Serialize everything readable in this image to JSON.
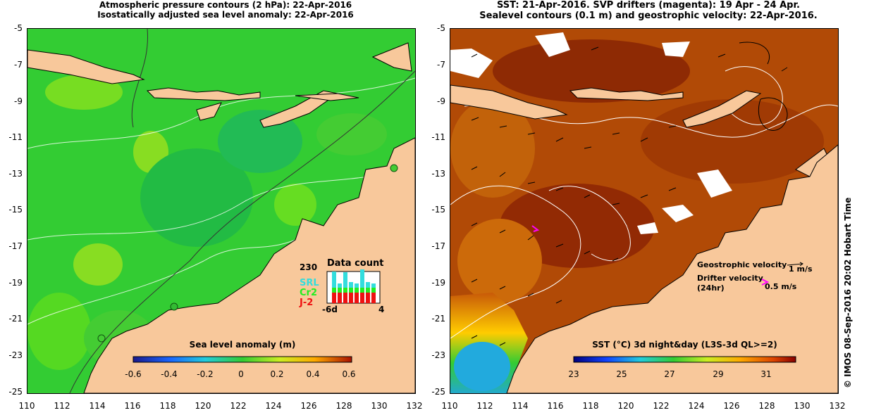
{
  "left_panel": {
    "title_line1": "Atmospheric pressure contours (2 hPa): 22-Apr-2016",
    "title_line2": "Isostatically adjusted sea level anomaly: 22-Apr-2016",
    "colorbar": {
      "title": "Sea level anomaly (m)",
      "labels": [
        "-0.6",
        "-0.4",
        "-0.2",
        "0",
        "0.2",
        "0.4",
        "0.6"
      ]
    },
    "data_count": {
      "title": "Data count",
      "max": "230",
      "x_start": "-6d",
      "x_end": "4",
      "legend": [
        "SRL",
        "Cr2",
        "J-2"
      ],
      "legend_colors": [
        "#33dddd",
        "#22ee22",
        "#ee1111"
      ]
    }
  },
  "right_panel": {
    "title_line1": "SST: 21-Apr-2016. SVP drifters (magenta): 19 Apr - 24 Apr.",
    "title_line2": "Sealevel contours (0.1 m) and geostrophic velocity: 22-Apr-2016.",
    "colorbar": {
      "title": "SST (°C) 3d night&day (L3S-3d QL>=2)",
      "labels": [
        "23",
        "25",
        "27",
        "29",
        "31"
      ]
    },
    "legend": {
      "geo_label": "Geostrophic velocity",
      "geo_value": "1 m/s",
      "drifter_label": "Drifter velocity",
      "drifter_sub": "(24hr)",
      "drifter_value": "0.5 m/s"
    }
  },
  "axes": {
    "y_labels": [
      "-5",
      "-7",
      "-9",
      "-11",
      "-13",
      "-15",
      "-17",
      "-19",
      "-21",
      "-23",
      "-25"
    ],
    "x_labels": [
      "110",
      "112",
      "114",
      "116",
      "118",
      "120",
      "122",
      "124",
      "126",
      "128",
      "130",
      "132"
    ]
  },
  "credit": "© IMOS 08-Sep-2016 20:02 Hobart Time",
  "colors": {
    "land": "#f8c89b",
    "sla_base": "#33cc33",
    "sst_base": "#b14a06"
  }
}
